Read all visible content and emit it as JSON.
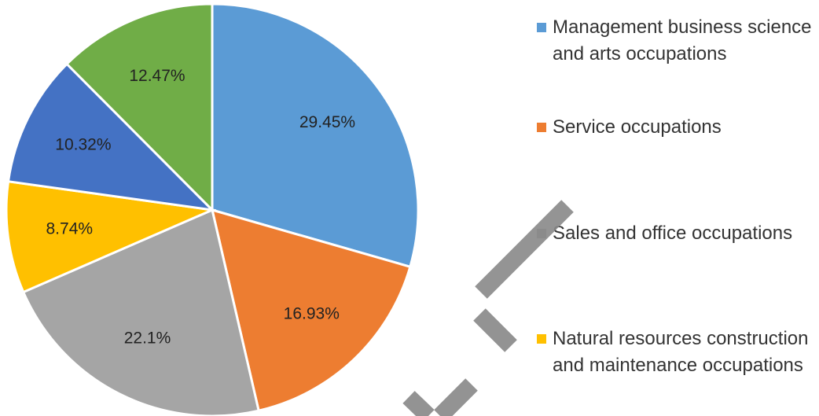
{
  "chart_data": {
    "type": "pie",
    "categories": [
      "Management business science and arts occupations",
      "Service occupations",
      "Sales and office occupations",
      "Natural resources construction and maintenance occupations",
      null,
      null
    ],
    "values": [
      29.45,
      16.93,
      22.1,
      8.74,
      10.32,
      12.47
    ],
    "value_labels": [
      "29.45%",
      "16.93%",
      "22.1%",
      "8.74%",
      "10.32%",
      "12.47%"
    ],
    "colors": [
      "#5b9bd5",
      "#ed7d31",
      "#a5a5a5",
      "#ffc000",
      "#4472c4",
      "#70ad47"
    ],
    "legend": "right"
  }
}
